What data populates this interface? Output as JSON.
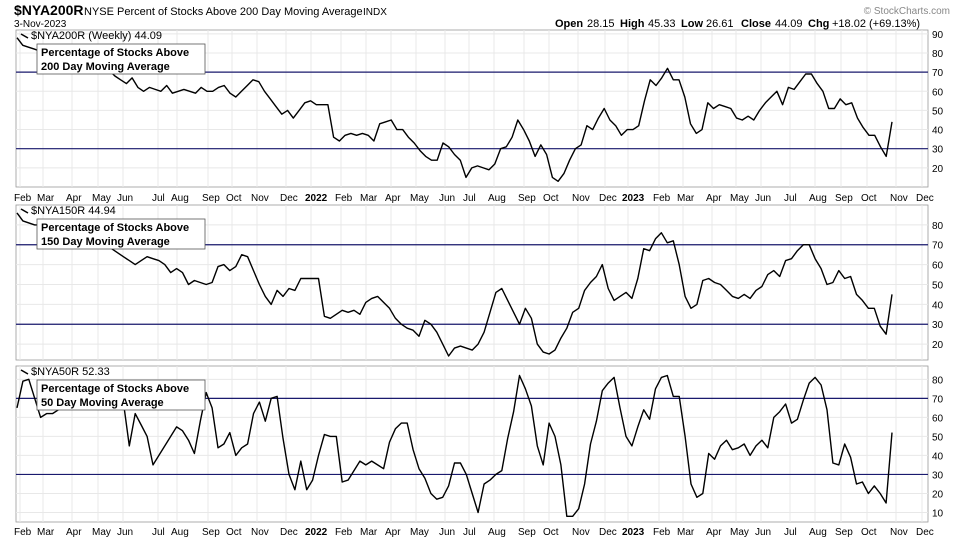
{
  "header": {
    "symbol": "$NYA200R",
    "name": "NYSE Percent of Stocks Above 200 Day Moving Average",
    "exchange": "INDX",
    "date": "3-Nov-2023",
    "open_label": "Open",
    "open": "28.15",
    "high_label": "High",
    "high": "45.33",
    "low_label": "Low",
    "low": "26.61",
    "close_label": "Close",
    "close": "44.09",
    "chg_label": "Chg",
    "chg": "+18.02 (+69.13%)",
    "watermark": "© StockCharts.com"
  },
  "colors": {
    "line": "#000000",
    "ref_line": "#1a1a6e",
    "grid": "#e8e8e8",
    "legend_icon": "#000000"
  },
  "x_axis_labels": [
    "Feb",
    "Mar",
    "Apr",
    "May",
    "Jun",
    "Jul",
    "Aug",
    "Sep",
    "Oct",
    "Nov",
    "Dec",
    "2022",
    "Feb",
    "Mar",
    "Apr",
    "May",
    "Jun",
    "Jul",
    "Aug",
    "Sep",
    "Oct",
    "Nov",
    "Dec",
    "2023",
    "Feb",
    "Mar",
    "Apr",
    "May",
    "Jun",
    "Jul",
    "Aug",
    "Sep",
    "Oct",
    "Nov",
    "Dec"
  ],
  "chart_data": [
    {
      "type": "line",
      "legend": "$NYA200R (Weekly) 44.09",
      "annotation": [
        "Percentage of Stocks Above",
        "200 Day Moving Average"
      ],
      "ylim": [
        10,
        92
      ],
      "yticks": [
        20,
        30,
        40,
        50,
        60,
        70,
        80,
        90
      ],
      "reference_lines": [
        30,
        70
      ],
      "series": [
        {
          "values": [
            88,
            84,
            83,
            82,
            81,
            81,
            79,
            78,
            77,
            77,
            76,
            75,
            73,
            72,
            71,
            70,
            71,
            68,
            66,
            64,
            67,
            62,
            60,
            62,
            61,
            60,
            63,
            59,
            60,
            61,
            60,
            59,
            62,
            60,
            60,
            62,
            63,
            59,
            57,
            60,
            63,
            66,
            65,
            60,
            56,
            52,
            48,
            50,
            46,
            50,
            54,
            55,
            53,
            53,
            53,
            36,
            34,
            37,
            38,
            37,
            38,
            37,
            34,
            43,
            44,
            45,
            40,
            40,
            36,
            33,
            29,
            26,
            24,
            24,
            33,
            31,
            27,
            24,
            15,
            20,
            21,
            20,
            19,
            22,
            30,
            31,
            36,
            45,
            40,
            34,
            26,
            32,
            27,
            15,
            13,
            17,
            24,
            30,
            32,
            42,
            40,
            46,
            51,
            45,
            42,
            37,
            40,
            40,
            42,
            55,
            66,
            63,
            67,
            72,
            66,
            66,
            57,
            43,
            38,
            40,
            54,
            51,
            53,
            52,
            51,
            46,
            45,
            47,
            45,
            50,
            54,
            57,
            60,
            53,
            62,
            61,
            65,
            69,
            69,
            64,
            60,
            51,
            51,
            56,
            53,
            54,
            46,
            41,
            37,
            37,
            31,
            26,
            44
          ]
        }
      ]
    },
    {
      "type": "line",
      "legend": "$NYA150R 44.94",
      "annotation": [
        "Percentage of Stocks Above",
        "150 Day Moving Average"
      ],
      "ylim": [
        12,
        90
      ],
      "yticks": [
        20,
        30,
        40,
        50,
        60,
        70,
        80
      ],
      "reference_lines": [
        30,
        70
      ],
      "series": [
        {
          "values": [
            86,
            82,
            81,
            80,
            80,
            78,
            77,
            76,
            76,
            75,
            75,
            74,
            73,
            72,
            71,
            70,
            68,
            66,
            64,
            62,
            60,
            62,
            64,
            63,
            62,
            60,
            56,
            58,
            56,
            50,
            52,
            51,
            50,
            51,
            59,
            60,
            57,
            59,
            65,
            64,
            57,
            50,
            44,
            40,
            47,
            44,
            48,
            47,
            53,
            53,
            53,
            53,
            34,
            33,
            35,
            37,
            36,
            37,
            35,
            41,
            43,
            44,
            41,
            38,
            33,
            30,
            28,
            27,
            24,
            32,
            30,
            26,
            20,
            14,
            18,
            19,
            18,
            17,
            20,
            26,
            36,
            46,
            48,
            42,
            36,
            30,
            38,
            33,
            20,
            16,
            15,
            17,
            23,
            28,
            36,
            38,
            47,
            51,
            54,
            60,
            48,
            42,
            44,
            46,
            43,
            53,
            68,
            67,
            73,
            76,
            71,
            72,
            60,
            44,
            38,
            40,
            52,
            53,
            51,
            50,
            47,
            44,
            43,
            45,
            43,
            47,
            49,
            55,
            57,
            54,
            62,
            63,
            67,
            70,
            70,
            63,
            58,
            50,
            51,
            57,
            53,
            54,
            45,
            42,
            38,
            38,
            29,
            25,
            45
          ]
        }
      ]
    },
    {
      "type": "line",
      "legend": "$NYA50R 52.33",
      "annotation": [
        "Percentage of Stocks Above",
        "50 Day Moving Average"
      ],
      "ylim": [
        5,
        87
      ],
      "yticks": [
        10,
        20,
        30,
        40,
        50,
        60,
        70,
        80
      ],
      "reference_lines": [
        30,
        70
      ],
      "series": [
        {
          "values": [
            65,
            79,
            80,
            70,
            60,
            62,
            62,
            64,
            66,
            68,
            70,
            72,
            74,
            76,
            78,
            73,
            68,
            71,
            68,
            45,
            62,
            56,
            50,
            35,
            40,
            45,
            50,
            55,
            53,
            48,
            41,
            58,
            73,
            65,
            44,
            46,
            52,
            40,
            44,
            46,
            62,
            68,
            58,
            70,
            71,
            49,
            30,
            22,
            37,
            22,
            27,
            40,
            51,
            50,
            50,
            26,
            27,
            32,
            37,
            35,
            37,
            35,
            33,
            47,
            54,
            57,
            57,
            43,
            33,
            28,
            20,
            17,
            18,
            24,
            36,
            36,
            30,
            20,
            10,
            25,
            27,
            30,
            32,
            49,
            63,
            82,
            75,
            66,
            45,
            35,
            57,
            50,
            35,
            8,
            8,
            12,
            25,
            46,
            58,
            74,
            78,
            81,
            65,
            50,
            45,
            55,
            64,
            59,
            75,
            81,
            82,
            71,
            71,
            50,
            25,
            18,
            20,
            41,
            38,
            45,
            48,
            43,
            44,
            46,
            40,
            45,
            48,
            44,
            60,
            63,
            67,
            57,
            59,
            69,
            78,
            81,
            77,
            64,
            36,
            35,
            46,
            39,
            25,
            26,
            20,
            24,
            20,
            15,
            52
          ]
        }
      ]
    }
  ]
}
